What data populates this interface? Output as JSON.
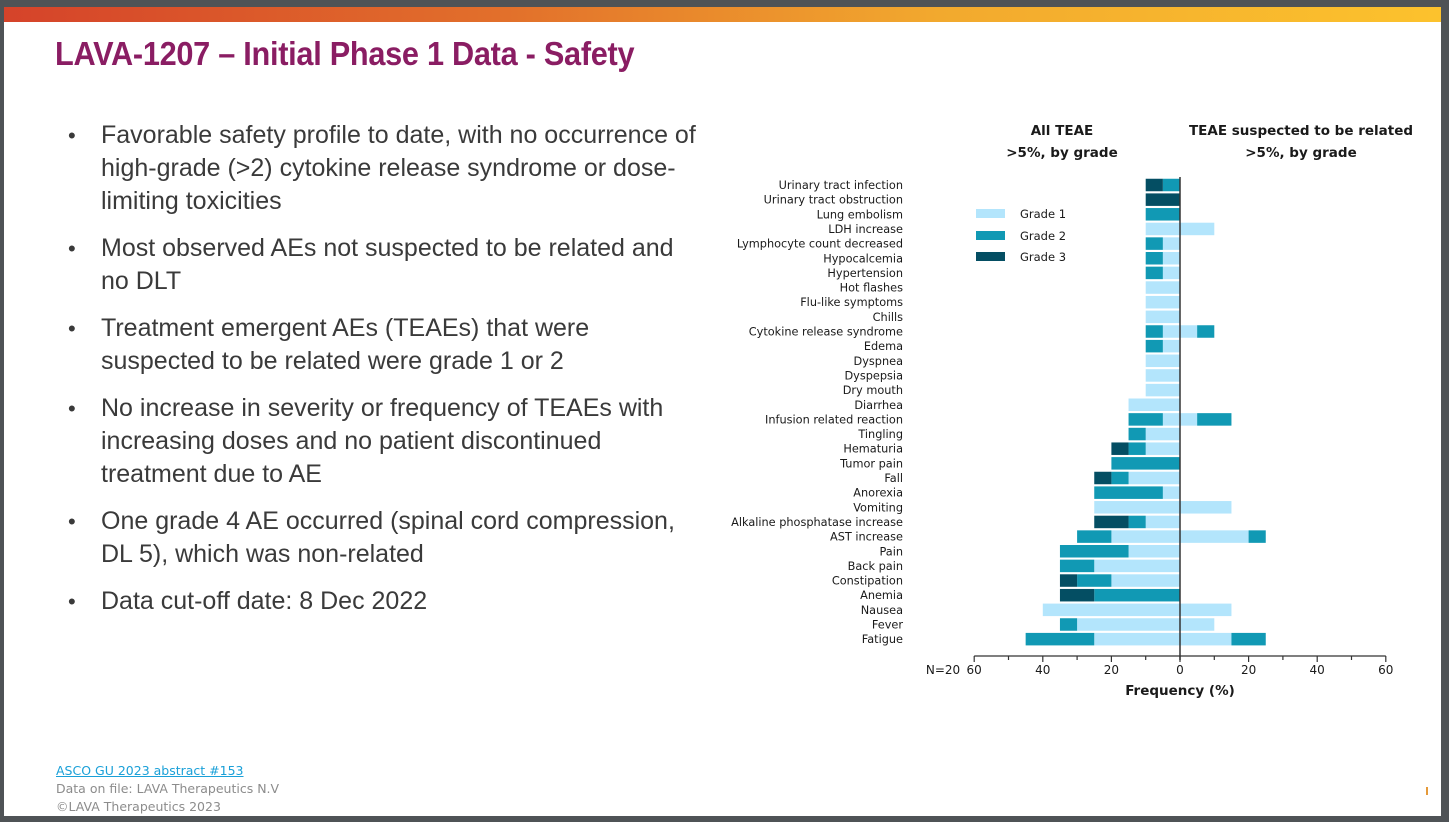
{
  "slide": {
    "title": "LAVA-1207 – Initial Phase 1 Data - Safety",
    "bullets": [
      "Favorable safety profile to date, with no occurrence of high-grade (>2) cytokine release syndrome or dose-limiting toxicities",
      "Most observed AEs not suspected to be related and no DLT",
      "Treatment emergent AEs (TEAEs) that were suspected to be related were grade 1 or 2",
      "No increase in severity or frequency of TEAEs with increasing doses and no patient discontinued treatment due to AE",
      "One grade 4 AE occurred (spinal cord compression, DL 5), which was non-related",
      "Data cut-off date: 8 Dec 2022"
    ],
    "footer": {
      "link": "ASCO GU 2023 abstract #153",
      "line2": "Data on file: LAVA Therapeutics N.V",
      "line3": "©LAVA Therapeutics 2023"
    },
    "colors": {
      "title": "#8a1d63",
      "grade1": "#b3e5fc",
      "grade2": "#1199b4",
      "grade3": "#044e63"
    }
  },
  "chart_data": {
    "type": "bar",
    "orientation": "horizontal-butterfly-stacked",
    "panels": [
      {
        "id": "left",
        "title_line1": "All TEAE",
        "title_line2": ">5%, by grade"
      },
      {
        "id": "right",
        "title_line1": "TEAE suspected to be related",
        "title_line2": ">5%, by grade"
      }
    ],
    "xlabel": "Frequency (%)",
    "n_label": "N=20",
    "xlim": [
      -60,
      60
    ],
    "xticks": [
      60,
      40,
      20,
      0,
      20,
      40,
      60
    ],
    "minor_tick_step": 10,
    "legend": {
      "position": "top-left-inside",
      "entries": [
        "Grade 1",
        "Grade 2",
        "Grade 3"
      ]
    },
    "grades": [
      "Grade 1",
      "Grade 2",
      "Grade 3"
    ],
    "categories": [
      "Urinary tract infection",
      "Urinary tract obstruction",
      "Lung embolism",
      "LDH increase",
      "Lymphocyte count decreased",
      "Hypocalcemia",
      "Hypertension",
      "Hot flashes",
      "Flu-like symptoms",
      "Chills",
      "Cytokine release syndrome",
      "Edema",
      "Dyspnea",
      "Dyspepsia",
      "Dry mouth",
      "Diarrhea",
      "Infusion related reaction",
      "Tingling",
      "Hematuria",
      "Tumor pain",
      "Fall",
      "Anorexia",
      "Vomiting",
      "Alkaline phosphatase increase",
      "AST increase",
      "Pain",
      "Back pain",
      "Constipation",
      "Anemia",
      "Nausea",
      "Fever",
      "Fatigue"
    ],
    "all_teae": {
      "grade1": [
        0,
        0,
        0,
        10,
        5,
        5,
        5,
        10,
        10,
        10,
        5,
        5,
        10,
        10,
        10,
        15,
        5,
        10,
        10,
        0,
        15,
        5,
        25,
        10,
        20,
        15,
        25,
        20,
        0,
        40,
        30,
        25
      ],
      "grade2": [
        5,
        0,
        10,
        0,
        5,
        5,
        5,
        0,
        0,
        0,
        5,
        5,
        0,
        0,
        0,
        0,
        10,
        5,
        5,
        20,
        5,
        20,
        0,
        5,
        10,
        20,
        10,
        10,
        25,
        0,
        5,
        20
      ],
      "grade3": [
        5,
        10,
        0,
        0,
        0,
        0,
        0,
        0,
        0,
        0,
        0,
        0,
        0,
        0,
        0,
        0,
        0,
        0,
        5,
        0,
        5,
        0,
        0,
        10,
        0,
        0,
        0,
        5,
        10,
        0,
        0,
        0
      ]
    },
    "related_teae": {
      "grade1": [
        0,
        0,
        0,
        10,
        0,
        0,
        0,
        0,
        0,
        0,
        5,
        0,
        0,
        0,
        0,
        0,
        5,
        0,
        0,
        0,
        0,
        0,
        15,
        0,
        20,
        0,
        0,
        0,
        0,
        15,
        10,
        15
      ],
      "grade2": [
        0,
        0,
        0,
        0,
        0,
        0,
        0,
        0,
        0,
        0,
        5,
        0,
        0,
        0,
        0,
        0,
        10,
        0,
        0,
        0,
        0,
        0,
        0,
        0,
        5,
        0,
        0,
        0,
        0,
        0,
        0,
        10
      ],
      "grade3": [
        0,
        0,
        0,
        0,
        0,
        0,
        0,
        0,
        0,
        0,
        0,
        0,
        0,
        0,
        0,
        0,
        0,
        0,
        0,
        0,
        0,
        0,
        0,
        0,
        0,
        0,
        0,
        0,
        0,
        0,
        0,
        0
      ]
    }
  }
}
